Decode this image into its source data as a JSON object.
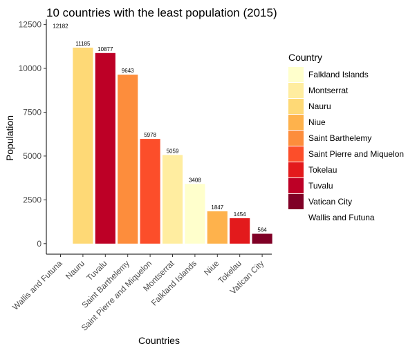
{
  "chart_data": {
    "type": "bar",
    "title": "10 countries with the least population (2015)",
    "xlabel": "Countries",
    "ylabel": "Population",
    "ylim": [
      -600,
      12800
    ],
    "yticks": [
      0,
      2500,
      5000,
      7500,
      10000,
      12500
    ],
    "ytick_labels": [
      "0",
      "2500",
      "5000",
      "7500",
      "10000",
      "12500"
    ],
    "grid": false,
    "legend": {
      "title": "Country",
      "placement": "right",
      "entries": [
        {
          "label": "Falkland Islands",
          "color": "#FFFFCC"
        },
        {
          "label": "Montserrat",
          "color": "#FFEDA0"
        },
        {
          "label": "Nauru",
          "color": "#FED976"
        },
        {
          "label": "Niue",
          "color": "#FEB24C"
        },
        {
          "label": "Saint Barthelemy",
          "color": "#FD8D3C"
        },
        {
          "label": "Saint Pierre and Miquelon",
          "color": "#FC4E2A"
        },
        {
          "label": "Tokelau",
          "color": "#E31A1C"
        },
        {
          "label": "Tuvalu",
          "color": "#BD0026"
        },
        {
          "label": "Vatican City",
          "color": "#800026"
        },
        {
          "label": "Wallis and Futuna",
          "color": "#FFFFFF"
        }
      ]
    },
    "categories": [
      "Wallis and Futuna",
      "Nauru",
      "Tuvalu",
      "Saint Barthelemy",
      "Saint Pierre and Miquelon",
      "Montserrat",
      "Falkland Islands",
      "Niue",
      "Tokelau",
      "Vatican City"
    ],
    "values": [
      12182,
      11185,
      10877,
      9643,
      5978,
      5059,
      3408,
      1847,
      1454,
      564
    ],
    "value_labels": [
      "12182",
      "11185",
      "10877",
      "9643",
      "5978",
      "5059",
      "3408",
      "1847",
      "1454",
      "564"
    ],
    "colors": [
      "#FFFFFF",
      "#FED976",
      "#BD0026",
      "#FD8D3C",
      "#FC4E2A",
      "#FFEDA0",
      "#FFFFCC",
      "#FEB24C",
      "#E31A1C",
      "#800026"
    ]
  }
}
